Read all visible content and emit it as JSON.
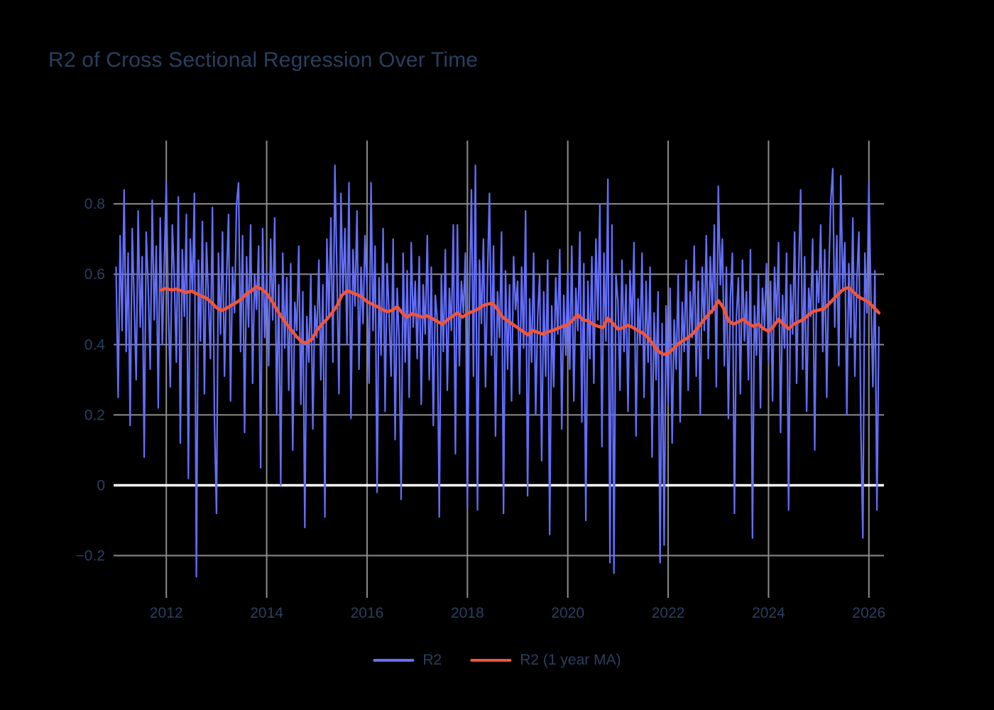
{
  "page": {
    "background": "#000000",
    "text_color": "#2a3f5f"
  },
  "chart_data": {
    "type": "line",
    "title": "R2 of Cross Sectional Regression Over Time",
    "xlabel": "",
    "ylabel": "",
    "grid": true,
    "legend_position": "bottom-center",
    "x_range": [
      2010.95,
      2026.3
    ],
    "y_range": [
      -0.32,
      0.98
    ],
    "x_ticks": [
      2012,
      2014,
      2016,
      2018,
      2020,
      2022,
      2024,
      2026
    ],
    "x_tick_labels": [
      "2012",
      "2014",
      "2016",
      "2018",
      "2020",
      "2022",
      "2024",
      "2026"
    ],
    "y_ticks": [
      -0.2,
      0,
      0.2,
      0.4,
      0.6,
      0.8
    ],
    "y_tick_labels": [
      "−0.2",
      "0",
      "0.2",
      "0.4",
      "0.6",
      "0.8"
    ],
    "zero_line": {
      "value": 0,
      "color": "#ffffff",
      "width": 3.5
    },
    "grid_color": "#8c8c8c",
    "series": [
      {
        "name": "R2",
        "color": "#636efa",
        "width": 2.2,
        "x_start": 2011.0,
        "x_step": 0.04,
        "values": [
          0.62,
          0.25,
          0.71,
          0.44,
          0.84,
          0.38,
          0.66,
          0.17,
          0.73,
          0.52,
          0.3,
          0.78,
          0.45,
          0.65,
          0.08,
          0.72,
          0.56,
          0.33,
          0.81,
          0.47,
          0.68,
          0.22,
          0.76,
          0.4,
          0.63,
          0.86,
          0.51,
          0.28,
          0.74,
          0.59,
          0.35,
          0.82,
          0.12,
          0.67,
          0.48,
          0.77,
          0.02,
          0.7,
          0.55,
          0.83,
          -0.26,
          0.64,
          0.41,
          0.75,
          0.26,
          0.69,
          0.53,
          0.36,
          0.79,
          0.18,
          -0.08,
          0.66,
          0.43,
          0.72,
          0.31,
          0.58,
          0.77,
          0.24,
          0.62,
          0.49,
          0.8,
          0.86,
          0.38,
          0.71,
          0.15,
          0.65,
          0.45,
          0.74,
          0.29,
          0.6,
          0.5,
          0.68,
          0.05,
          0.73,
          0.42,
          0.61,
          0.34,
          0.7,
          0.47,
          0.76,
          0.2,
          0.57,
          0.0,
          0.66,
          0.39,
          0.59,
          0.27,
          0.63,
          0.1,
          0.52,
          0.44,
          0.68,
          0.23,
          0.55,
          -0.12,
          0.48,
          0.35,
          0.6,
          0.16,
          0.51,
          0.42,
          0.64,
          0.3,
          0.57,
          -0.09,
          0.7,
          0.48,
          0.76,
          0.35,
          0.91,
          0.61,
          0.26,
          0.83,
          0.54,
          0.73,
          0.4,
          0.86,
          0.19,
          0.67,
          0.51,
          0.78,
          0.33,
          0.62,
          0.46,
          0.71,
          0.55,
          0.29,
          0.86,
          0.44,
          0.68,
          -0.02,
          0.59,
          0.37,
          0.73,
          0.21,
          0.63,
          0.48,
          0.31,
          0.7,
          0.13,
          0.56,
          0.41,
          -0.04,
          0.66,
          0.35,
          0.61,
          0.25,
          0.69,
          0.45,
          0.58,
          0.36,
          0.65,
          0.23,
          0.57,
          0.43,
          0.71,
          0.3,
          0.62,
          0.17,
          0.54,
          0.47,
          -0.09,
          0.6,
          0.38,
          0.67,
          0.27,
          0.56,
          0.44,
          0.74,
          0.09,
          0.74,
          0.34,
          0.58,
          0.49,
          0.66,
          -0.06,
          0.52,
          0.84,
          0.31,
          0.91,
          -0.07,
          0.64,
          0.46,
          0.7,
          0.28,
          0.59,
          0.83,
          0.37,
          0.68,
          0.14,
          0.55,
          0.42,
          0.72,
          -0.08,
          0.61,
          0.33,
          0.57,
          0.24,
          0.65,
          0.5,
          0.58,
          0.26,
          0.62,
          0.39,
          0.78,
          -0.03,
          0.53,
          0.35,
          0.66,
          0.2,
          0.48,
          0.6,
          0.07,
          0.55,
          0.31,
          0.64,
          -0.14,
          0.51,
          0.28,
          0.59,
          0.43,
          0.67,
          0.16,
          0.54,
          0.37,
          0.61,
          0.33,
          0.68,
          0.24,
          0.56,
          0.44,
          0.72,
          0.18,
          0.63,
          -0.1,
          0.58,
          0.36,
          0.65,
          0.29,
          0.7,
          0.47,
          0.8,
          0.11,
          0.66,
          0.41,
          0.87,
          -0.22,
          0.74,
          -0.25,
          0.6,
          0.52,
          0.27,
          0.64,
          0.38,
          0.57,
          0.21,
          0.61,
          0.45,
          0.69,
          0.14,
          0.53,
          0.4,
          0.66,
          0.25,
          0.58,
          0.35,
          0.62,
          0.08,
          0.49,
          0.3,
          0.55,
          -0.22,
          0.46,
          -0.17,
          0.51,
          0.23,
          0.56,
          0.12,
          0.47,
          0.33,
          0.6,
          0.18,
          0.52,
          0.38,
          0.64,
          0.27,
          0.55,
          0.42,
          0.68,
          0.31,
          0.58,
          0.2,
          0.62,
          0.44,
          0.71,
          0.36,
          0.65,
          0.49,
          0.74,
          0.28,
          0.85,
          0.57,
          0.7,
          0.34,
          0.62,
          0.19,
          0.53,
          0.66,
          -0.08,
          0.48,
          0.59,
          0.26,
          0.64,
          0.41,
          0.55,
          0.3,
          0.67,
          -0.15,
          0.51,
          0.37,
          0.6,
          0.22,
          0.56,
          0.45,
          0.63,
          0.35,
          0.58,
          0.24,
          0.62,
          0.47,
          0.69,
          0.15,
          0.54,
          0.39,
          0.66,
          -0.07,
          0.57,
          0.43,
          0.72,
          0.29,
          0.6,
          0.84,
          0.33,
          0.65,
          0.21,
          0.56,
          0.48,
          0.7,
          0.1,
          0.61,
          0.52,
          0.74,
          0.38,
          0.67,
          0.25,
          0.59,
          0.81,
          0.9,
          0.45,
          0.71,
          0.34,
          0.88,
          0.56,
          0.69,
          0.2,
          0.63,
          0.42,
          0.76,
          0.31,
          0.58,
          0.72,
          0.16,
          -0.15,
          0.66,
          0.49,
          0.86,
          0.54,
          0.28,
          0.61,
          -0.07,
          0.45
        ]
      },
      {
        "name": "R2 (1 year MA)",
        "color": "#ef553b",
        "width": 4.5,
        "x_start": 2011.9,
        "x_step": 0.1,
        "values": [
          0.555,
          0.56,
          0.555,
          0.558,
          0.553,
          0.548,
          0.552,
          0.545,
          0.538,
          0.532,
          0.52,
          0.505,
          0.497,
          0.503,
          0.512,
          0.52,
          0.53,
          0.545,
          0.553,
          0.565,
          0.558,
          0.545,
          0.525,
          0.5,
          0.478,
          0.458,
          0.44,
          0.422,
          0.408,
          0.405,
          0.415,
          0.44,
          0.458,
          0.472,
          0.49,
          0.51,
          0.54,
          0.553,
          0.548,
          0.542,
          0.535,
          0.522,
          0.515,
          0.508,
          0.5,
          0.494,
          0.497,
          0.508,
          0.49,
          0.478,
          0.488,
          0.483,
          0.478,
          0.482,
          0.474,
          0.466,
          0.458,
          0.47,
          0.48,
          0.49,
          0.478,
          0.488,
          0.494,
          0.5,
          0.51,
          0.515,
          0.518,
          0.5,
          0.478,
          0.468,
          0.458,
          0.448,
          0.438,
          0.428,
          0.44,
          0.435,
          0.43,
          0.436,
          0.44,
          0.446,
          0.452,
          0.456,
          0.47,
          0.485,
          0.47,
          0.468,
          0.458,
          0.452,
          0.448,
          0.475,
          0.46,
          0.444,
          0.448,
          0.455,
          0.448,
          0.44,
          0.432,
          0.42,
          0.4,
          0.382,
          0.372,
          0.375,
          0.388,
          0.402,
          0.412,
          0.42,
          0.432,
          0.45,
          0.468,
          0.485,
          0.5,
          0.525,
          0.505,
          0.468,
          0.458,
          0.465,
          0.472,
          0.46,
          0.452,
          0.458,
          0.445,
          0.438,
          0.452,
          0.472,
          0.458,
          0.445,
          0.458,
          0.465,
          0.472,
          0.485,
          0.495,
          0.498,
          0.502,
          0.515,
          0.53,
          0.545,
          0.558,
          0.562,
          0.548,
          0.535,
          0.528,
          0.52,
          0.505,
          0.49
        ]
      }
    ],
    "legend": [
      {
        "label": "R2",
        "color": "#636efa"
      },
      {
        "label": "R2 (1 year MA)",
        "color": "#ef553b"
      }
    ]
  }
}
